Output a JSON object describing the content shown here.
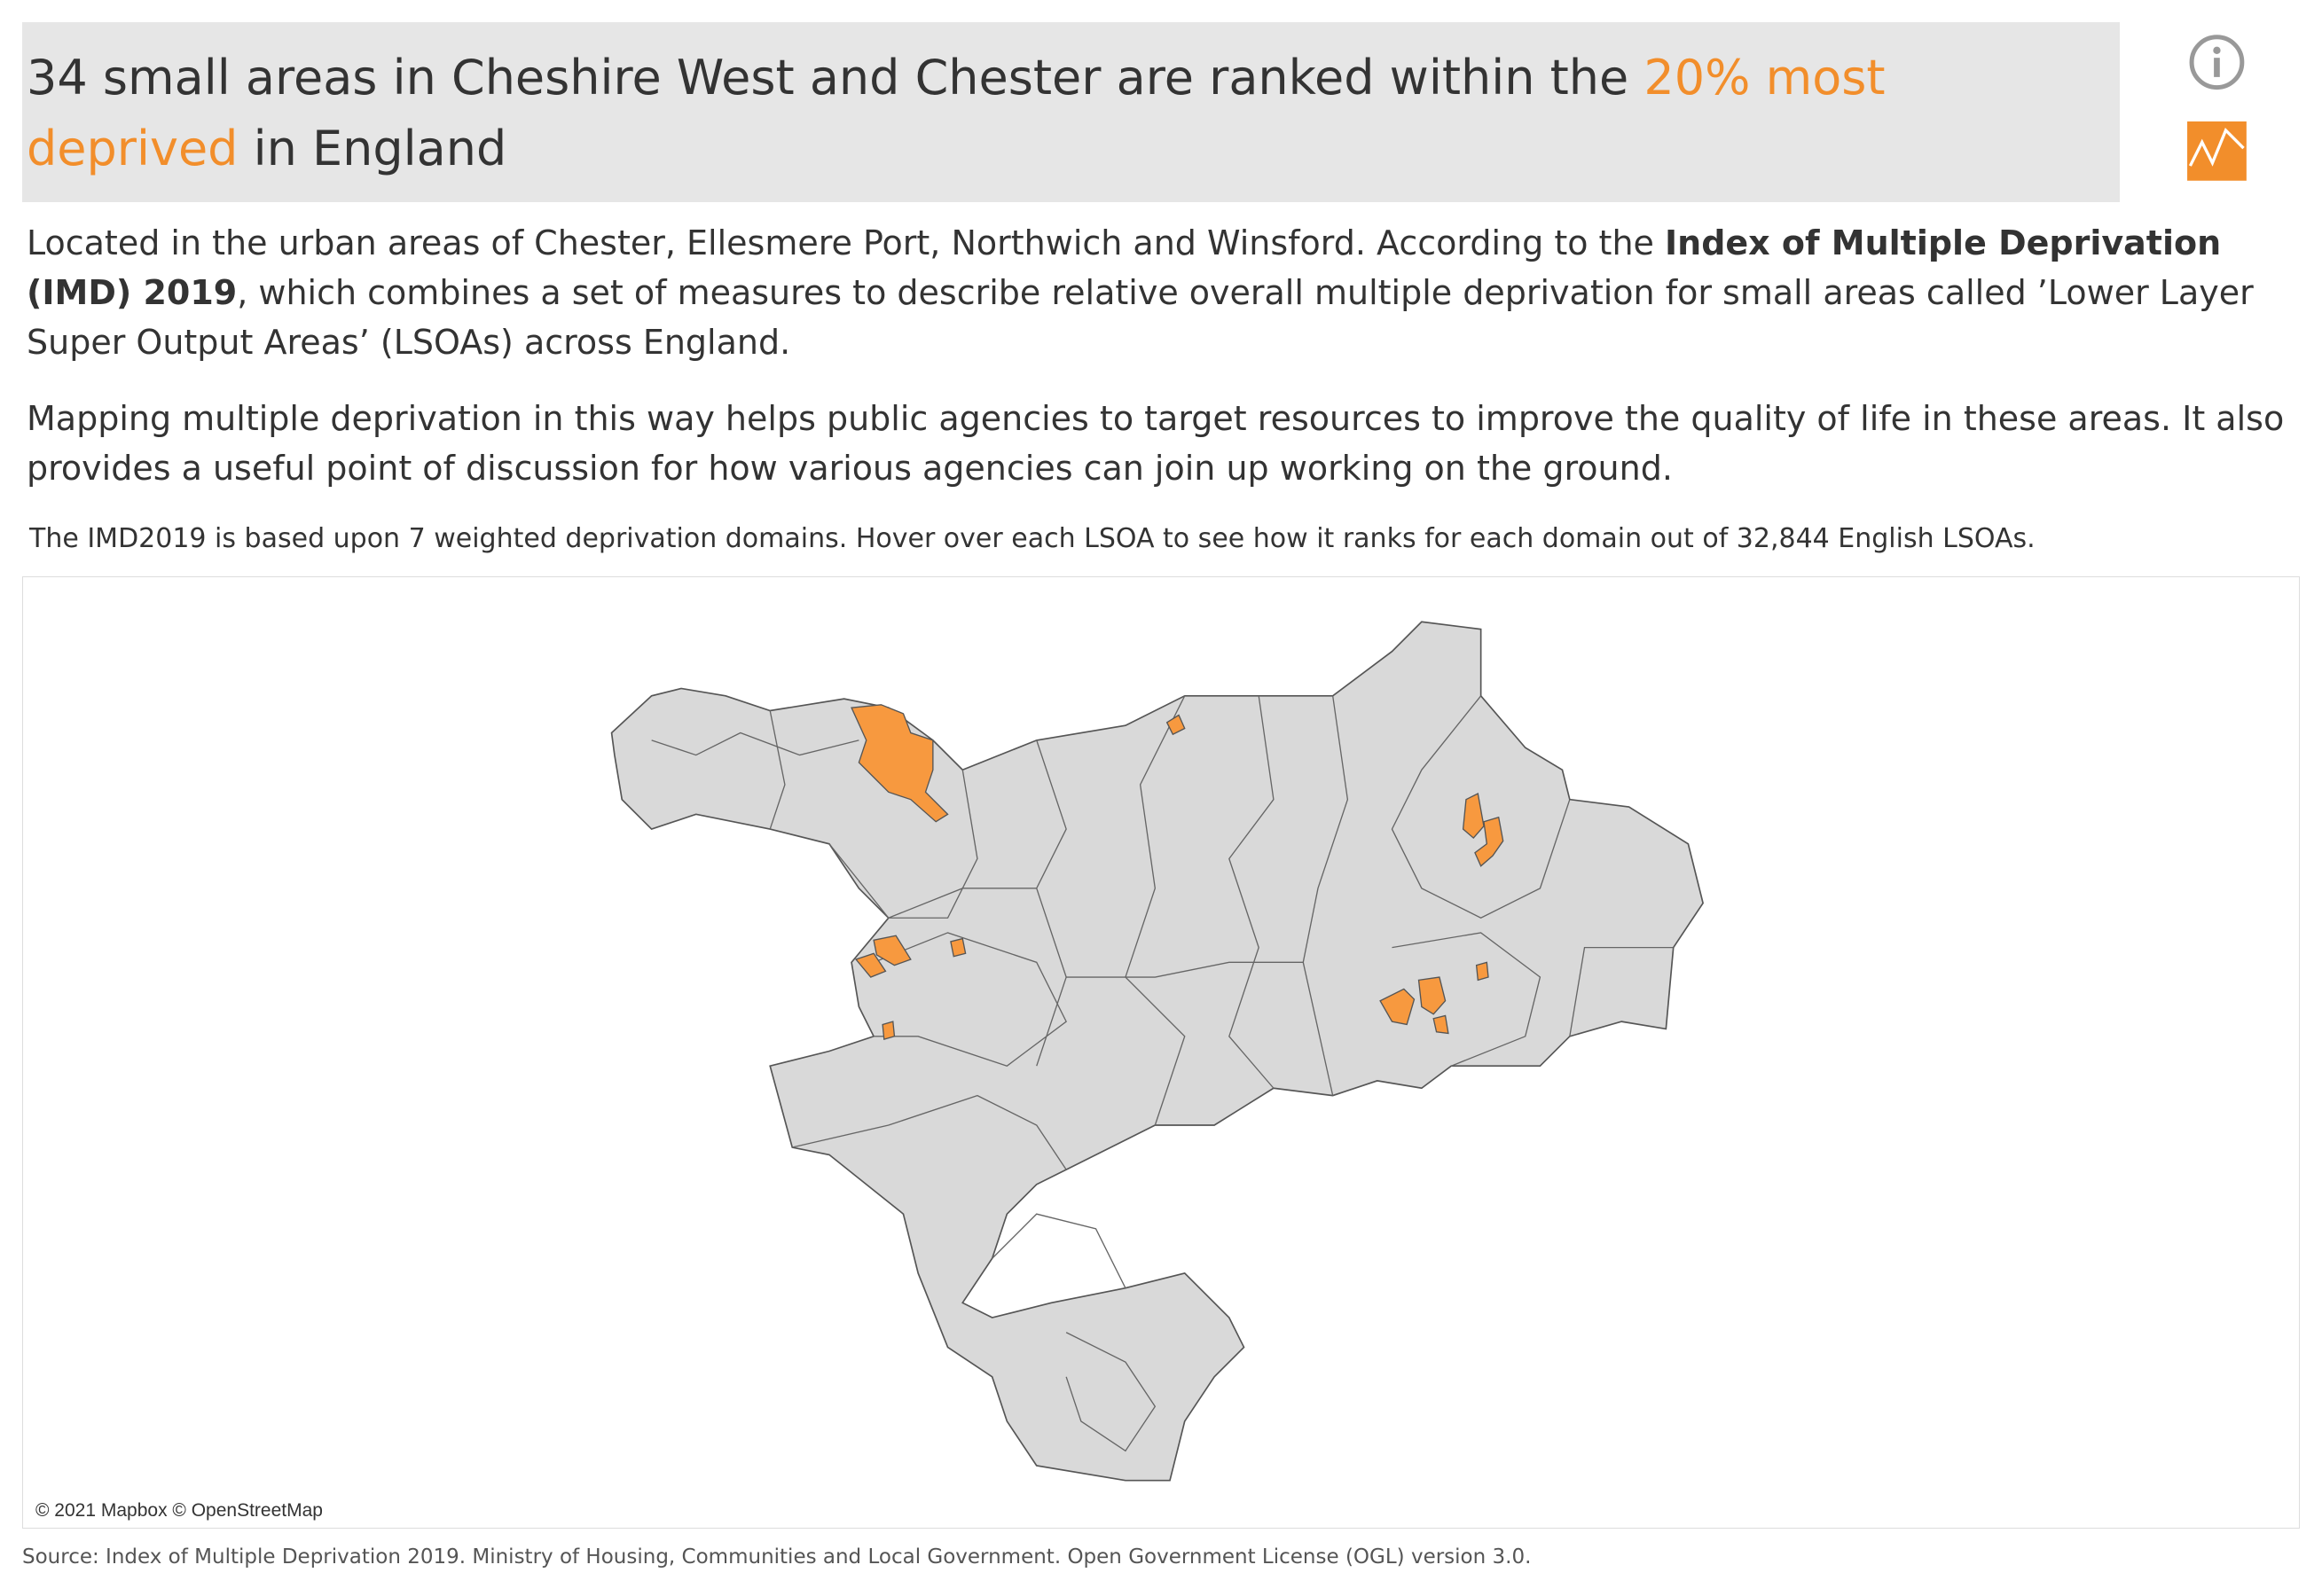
{
  "header": {
    "title_start": "34 small areas in Cheshire West and Chester are ranked within the ",
    "title_highlight": "20% most deprived",
    "title_end": " in England"
  },
  "intro": {
    "paragraph1_start": "Located in the urban areas of Chester, Ellesmere Port, Northwich and Winsford.  According to the ",
    "paragraph1_bold": "Index of Multiple Deprivation (IMD) 2019",
    "paragraph1_end": ", which combines a set of measures to describe relative overall multiple deprivation for small areas called ’Lower Layer Super Output Areas’ (LSOAs) across England.",
    "paragraph2": "Mapping multiple deprivation in this way helps public agencies to target resources to improve the quality of life in these areas.  It also provides a useful point of discussion for how various agencies can join up working on the ground."
  },
  "map": {
    "note": "The IMD2019 is based upon 7 weighted deprivation domains. Hover over each LSOA to see how it ranks for each domain out of 32,844 English LSOAs.",
    "attribution": "© 2021 Mapbox © OpenStreetMap"
  },
  "footer": {
    "source": "Source: Index of Multiple Deprivation 2019. Ministry of Housing, Communities and Local Government.  Open Government License (OGL) version 3.0."
  }
}
